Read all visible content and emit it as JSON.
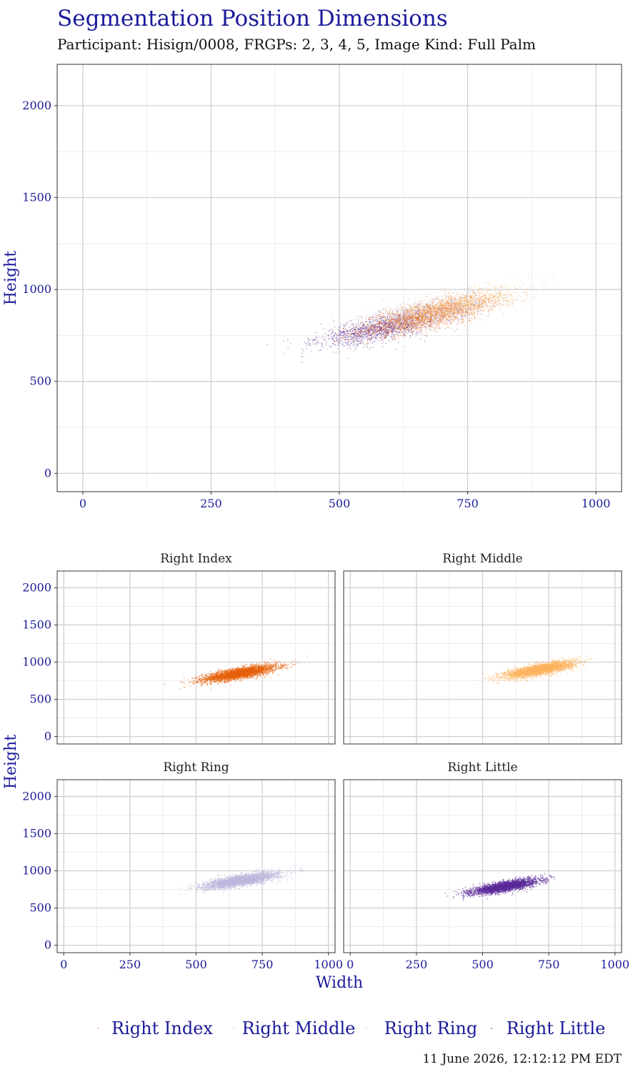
{
  "title": "Segmentation Position Dimensions",
  "subtitle": "Participant: Hisign/0008, FRGPs: 2, 3, 4, 5, Image Kind: Full Palm",
  "timestamp": "11 June 2026, 12:12:12 PM EDT",
  "colors": {
    "text_accent": "#1a1a99",
    "grid_major": "#d0d0d0",
    "grid_minor": "#ececec",
    "panel_border": "#333333"
  },
  "chart_data": [
    {
      "type": "scatter",
      "panel": "combined",
      "xlabel": "",
      "ylabel": "Height",
      "xlim": [
        -50,
        1050
      ],
      "ylim": [
        -100,
        2225
      ],
      "x_ticks": [
        0,
        250,
        500,
        750,
        1000
      ],
      "y_ticks": [
        0,
        500,
        1000,
        1500,
        2000
      ],
      "grid": true,
      "series_ref": [
        "Right Index",
        "Right Middle",
        "Right Ring",
        "Right Little"
      ]
    },
    {
      "type": "scatter",
      "panel": "facets",
      "xlabel": "Width",
      "ylabel": "Height",
      "xlim": [
        -25,
        1025
      ],
      "ylim": [
        -100,
        2225
      ],
      "x_ticks": [
        0,
        250,
        500,
        750,
        1000
      ],
      "y_ticks": [
        0,
        500,
        1000,
        1500,
        2000
      ],
      "grid": true,
      "legend_position": "bottom",
      "series": [
        {
          "name": "Right Index",
          "color": "#e6600a",
          "center": [
            665,
            850
          ],
          "spread": [
            70,
            55
          ],
          "n_points": 3000
        },
        {
          "name": "Right Middle",
          "color": "#fdb35e",
          "center": [
            715,
            900
          ],
          "spread": [
            65,
            55
          ],
          "n_points": 3000
        },
        {
          "name": "Right Ring",
          "color": "#bcb7dc",
          "center": [
            670,
            870
          ],
          "spread": [
            72,
            55
          ],
          "n_points": 3000
        },
        {
          "name": "Right Little",
          "color": "#5a2a9a",
          "center": [
            585,
            790
          ],
          "spread": [
            62,
            50
          ],
          "n_points": 3000
        }
      ]
    }
  ]
}
